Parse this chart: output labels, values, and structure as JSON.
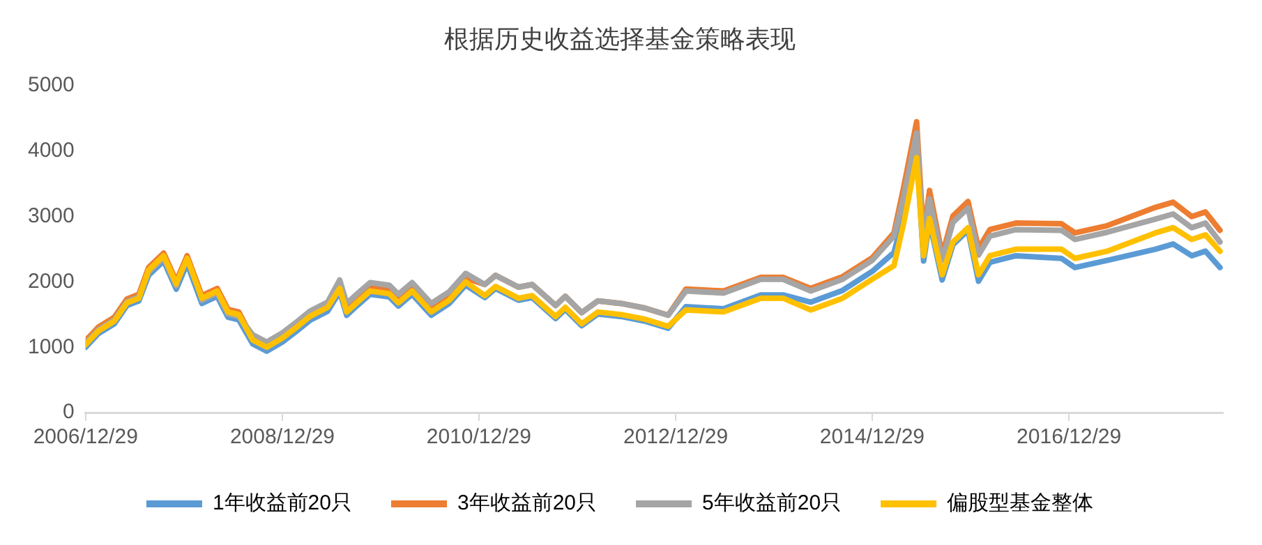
{
  "chart_data": {
    "type": "line",
    "title": "根据历史收益选择基金策略表现",
    "x": [
      "2006-12-29",
      "2007-02-15",
      "2007-04-15",
      "2007-06-01",
      "2007-07-15",
      "2007-08-20",
      "2007-10-15",
      "2007-12-01",
      "2008-01-10",
      "2008-03-05",
      "2008-05-01",
      "2008-06-10",
      "2008-07-20",
      "2008-09-10",
      "2008-11-01",
      "2008-12-29",
      "2009-02-15",
      "2009-04-10",
      "2009-06-15",
      "2009-07-30",
      "2009-08-25",
      "2009-10-01",
      "2009-11-20",
      "2010-01-30",
      "2010-03-05",
      "2010-04-25",
      "2010-07-05",
      "2010-09-10",
      "2010-11-10",
      "2011-01-20",
      "2011-03-01",
      "2011-05-25",
      "2011-07-15",
      "2011-10-10",
      "2011-11-15",
      "2012-01-15",
      "2012-03-15",
      "2012-06-10",
      "2012-09-05",
      "2012-12-01",
      "2013-02-05",
      "2013-06-25",
      "2013-11-10",
      "2014-02-01",
      "2014-05-15",
      "2014-09-10",
      "2014-12-29",
      "2015-03-20",
      "2015-04-25",
      "2015-06-12",
      "2015-07-08",
      "2015-07-30",
      "2015-09-15",
      "2015-10-25",
      "2015-12-20",
      "2016-01-28",
      "2016-03-10",
      "2016-06-15",
      "2016-12-01",
      "2017-01-20",
      "2017-05-20",
      "2017-11-15",
      "2018-01-20",
      "2018-03-30",
      "2018-05-20",
      "2018-07-13"
    ],
    "series": [
      {
        "name": "1年收益前20只",
        "color": "#5b9bd5",
        "values": [
          1000,
          1210,
          1360,
          1640,
          1710,
          2100,
          2320,
          1890,
          2280,
          1670,
          1780,
          1460,
          1420,
          1050,
          940,
          1080,
          1230,
          1410,
          1550,
          1850,
          1490,
          1630,
          1810,
          1770,
          1630,
          1810,
          1490,
          1670,
          1950,
          1760,
          1900,
          1720,
          1760,
          1440,
          1580,
          1330,
          1510,
          1470,
          1400,
          1290,
          1620,
          1590,
          1800,
          1800,
          1690,
          1870,
          2160,
          2450,
          3000,
          4000,
          2320,
          2920,
          2030,
          2570,
          2790,
          2010,
          2300,
          2400,
          2360,
          2220,
          2330,
          2500,
          2580,
          2400,
          2470,
          2220
        ]
      },
      {
        "name": "3年收益前20只",
        "color": "#ed7d31",
        "values": [
          1100,
          1310,
          1460,
          1740,
          1810,
          2220,
          2440,
          2010,
          2400,
          1790,
          1900,
          1580,
          1540,
          1130,
          1020,
          1160,
          1310,
          1490,
          1630,
          1960,
          1600,
          1740,
          1920,
          1880,
          1740,
          1920,
          1600,
          1780,
          2060,
          1960,
          2100,
          1920,
          1960,
          1640,
          1780,
          1530,
          1710,
          1670,
          1600,
          1490,
          1890,
          1860,
          2070,
          2070,
          1900,
          2080,
          2370,
          2750,
          3450,
          4450,
          2700,
          3400,
          2410,
          3010,
          3230,
          2510,
          2800,
          2900,
          2890,
          2750,
          2860,
          3140,
          3220,
          3000,
          3070,
          2790
        ]
      },
      {
        "name": "5年收益前20只",
        "color": "#a5a5a5",
        "values": [
          1060,
          1270,
          1420,
          1700,
          1770,
          2150,
          2370,
          1940,
          null,
          1720,
          1830,
          1510,
          1470,
          1190,
          1080,
          1220,
          1370,
          1550,
          1690,
          2030,
          1670,
          1810,
          1990,
          1950,
          1810,
          1990,
          1670,
          1850,
          2130,
          1960,
          2100,
          1920,
          1960,
          1640,
          1780,
          1530,
          1710,
          1670,
          1600,
          1490,
          1860,
          1830,
          2040,
          2040,
          1860,
          2040,
          2330,
          2700,
          3300,
          4280,
          2600,
          3270,
          2330,
          2910,
          3130,
          2410,
          2700,
          2800,
          2790,
          2650,
          2760,
          2960,
          3040,
          2830,
          2900,
          2610
        ]
      },
      {
        "name": "偏股型基金整体",
        "color": "#ffc000",
        "values": [
          1040,
          1250,
          1400,
          1680,
          1750,
          2180,
          2400,
          1970,
          2360,
          1750,
          1860,
          1540,
          1500,
          1110,
          1000,
          1140,
          1290,
          1470,
          1610,
          1900,
          1540,
          1680,
          1860,
          1820,
          1680,
          1860,
          1540,
          1720,
          2000,
          1790,
          1930,
          1750,
          1790,
          1470,
          1610,
          1360,
          1540,
          1500,
          1430,
          1320,
          1570,
          1540,
          1750,
          1750,
          1570,
          1750,
          2040,
          2250,
          2900,
          3900,
          2400,
          2970,
          2110,
          2610,
          2830,
          2110,
          2400,
          2500,
          2500,
          2360,
          2470,
          2750,
          2830,
          2650,
          2720,
          2470
        ]
      }
    ],
    "xlim": [
      "2006-12-29",
      "2018-07-24"
    ],
    "xticks": [
      {
        "value": "2006-12-29",
        "label": "2006/12/29"
      },
      {
        "value": "2008-12-29",
        "label": "2008/12/29"
      },
      {
        "value": "2010-12-29",
        "label": "2010/12/29"
      },
      {
        "value": "2012-12-29",
        "label": "2012/12/29"
      },
      {
        "value": "2014-12-29",
        "label": "2014/12/29"
      },
      {
        "value": "2016-12-29",
        "label": "2016/12/29"
      }
    ],
    "ylim": [
      0,
      5000
    ],
    "yticks": [
      0,
      1000,
      2000,
      3000,
      4000,
      5000
    ],
    "grid": false,
    "legend": "bottom",
    "marker": "none",
    "line_style": "solid"
  }
}
